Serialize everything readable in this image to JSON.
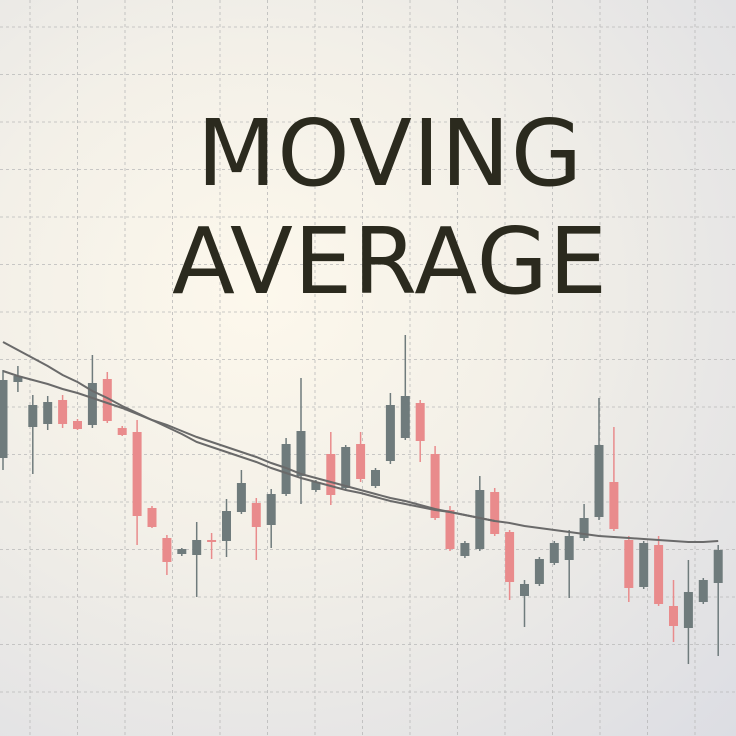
{
  "chart_data": {
    "type": "candlestick",
    "title": "MOVING AVERAGE",
    "ylim": [
      0,
      736
    ],
    "up_color": "#6f7b7c",
    "down_color": "#e98b8c",
    "grid": true,
    "open": [
      278,
      354,
      309,
      312,
      336,
      315,
      311,
      357,
      308,
      304,
      228,
      198,
      182,
      181,
      196,
      195,
      224,
      233,
      211,
      242,
      260,
      246,
      282,
      248,
      292,
      250,
      275,
      298,
      333,
      282,
      226,
      180,
      187,
      244,
      204,
      140,
      152,
      173,
      176,
      198,
      219,
      254,
      196,
      149,
      191,
      130,
      108,
      134,
      153
    ],
    "high": [
      366,
      370,
      341,
      340,
      341,
      317,
      381,
      364,
      310,
      316,
      230,
      201,
      188,
      214,
      203,
      237,
      266,
      238,
      247,
      298,
      358,
      256,
      304,
      291,
      304,
      268,
      343,
      401,
      336,
      290,
      230,
      195,
      260,
      248,
      206,
      156,
      179,
      195,
      206,
      232,
      338,
      309,
      200,
      195,
      200,
      156,
      176,
      158,
      191
    ],
    "low": [
      266,
      344,
      262,
      306,
      308,
      306,
      308,
      313,
      300,
      191,
      208,
      161,
      180,
      139,
      177,
      179,
      222,
      176,
      188,
      240,
      232,
      244,
      231,
      246,
      254,
      248,
      272,
      296,
      274,
      216,
      185,
      178,
      185,
      200,
      136,
      109,
      150,
      171,
      138,
      195,
      216,
      205,
      134,
      147,
      130,
      94,
      72,
      132,
      80
    ],
    "close": [
      356,
      360,
      331,
      334,
      312,
      307,
      353,
      315,
      301,
      220,
      209,
      174,
      187,
      196,
      194,
      225,
      253,
      209,
      242,
      292,
      305,
      254,
      241,
      289,
      257,
      266,
      331,
      340,
      295,
      218,
      187,
      193,
      246,
      202,
      154,
      152,
      177,
      193,
      200,
      218,
      291,
      207,
      148,
      193,
      132,
      110,
      144,
      156,
      186
    ],
    "series": [
      {
        "color": "#6a6a6a",
        "values": [
          394,
          386,
          378,
          370,
          361,
          354,
          345,
          338,
          330,
          323,
          316,
          309,
          302,
          294,
          289,
          284,
          279,
          274,
          268,
          263,
          258,
          254,
          250,
          246,
          243,
          239,
          235,
          232,
          229,
          226,
          224,
          221,
          218,
          215,
          213,
          210,
          208,
          206,
          204,
          202,
          200,
          199,
          198,
          197,
          196,
          195,
          194,
          194,
          195
        ]
      },
      {
        "color": "#6a6a6a",
        "values": [
          365,
          360,
          356,
          352,
          347,
          343,
          338,
          333,
          328,
          322,
          316,
          311,
          305,
          299,
          294,
          289,
          284,
          279,
          273,
          268,
          262,
          258,
          254,
          250,
          246,
          242,
          238,
          235,
          231,
          227,
          224,
          221,
          218,
          215,
          null,
          null,
          null,
          null,
          null,
          null,
          null,
          null,
          null,
          null,
          null,
          null,
          null,
          null,
          null
        ]
      }
    ]
  }
}
